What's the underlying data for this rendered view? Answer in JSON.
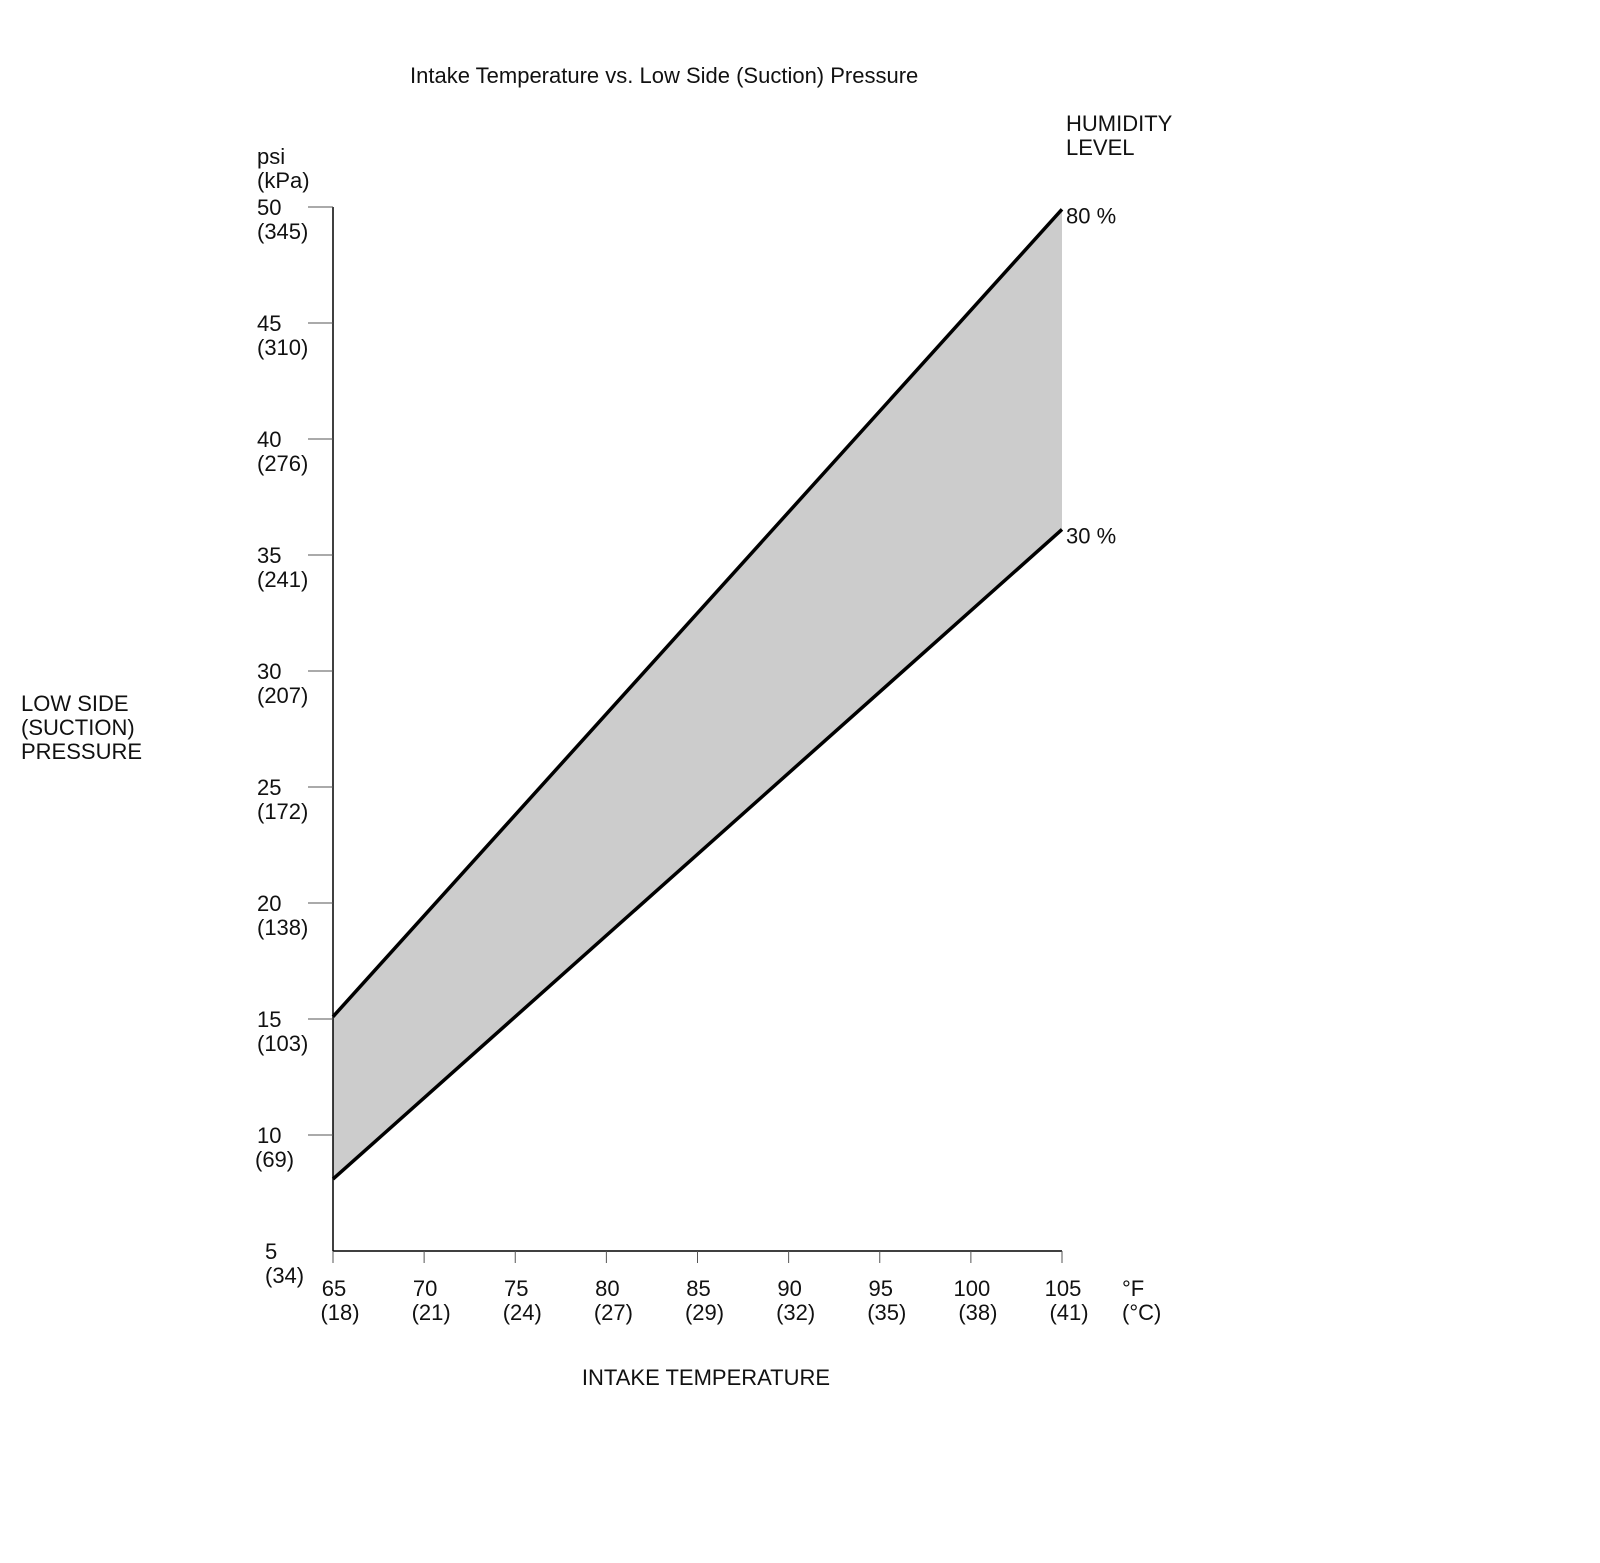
{
  "chart_data": {
    "type": "area",
    "title": "Intake Temperature vs. Low Side (Suction) Pressure",
    "xlabel": "INTAKE TEMPERATURE",
    "ylabel": [
      "LOW SIDE",
      "(SUCTION)",
      "PRESSURE"
    ],
    "y_units": [
      "psi",
      "(kPa)"
    ],
    "x_units": [
      "°F",
      "(°C)"
    ],
    "legend_title": [
      "HUMIDITY",
      "LEVEL"
    ],
    "xlim": [
      65,
      105
    ],
    "ylim": [
      5,
      50
    ],
    "x_ticks": [
      {
        "value": 65,
        "label": "65",
        "sub": "(18)"
      },
      {
        "value": 70,
        "label": "70",
        "sub": "(21)"
      },
      {
        "value": 75,
        "label": "75",
        "sub": "(24)"
      },
      {
        "value": 80,
        "label": "80",
        "sub": "(27)"
      },
      {
        "value": 85,
        "label": "85",
        "sub": "(29)"
      },
      {
        "value": 90,
        "label": "90",
        "sub": "(32)"
      },
      {
        "value": 95,
        "label": "95",
        "sub": "(35)"
      },
      {
        "value": 100,
        "label": "100",
        "sub": "(38)"
      },
      {
        "value": 105,
        "label": "105",
        "sub": "(41)"
      }
    ],
    "y_ticks": [
      {
        "value": 5,
        "label": "5",
        "sub": "(34)"
      },
      {
        "value": 10,
        "label": "10",
        "sub": "(69)"
      },
      {
        "value": 15,
        "label": "15",
        "sub": "(103)"
      },
      {
        "value": 20,
        "label": "20",
        "sub": "(138)"
      },
      {
        "value": 25,
        "label": "25",
        "sub": "(172)"
      },
      {
        "value": 30,
        "label": "30",
        "sub": "(207)"
      },
      {
        "value": 35,
        "label": "35",
        "sub": "(241)"
      },
      {
        "value": 40,
        "label": "40",
        "sub": "(276)"
      },
      {
        "value": 45,
        "label": "45",
        "sub": "(310)"
      },
      {
        "value": 50,
        "label": "50",
        "sub": "(345)"
      }
    ],
    "series": [
      {
        "name": "80 %",
        "x": [
          65,
          105
        ],
        "y": [
          15.1,
          49.9
        ]
      },
      {
        "name": "30 %",
        "x": [
          65,
          105
        ],
        "y": [
          8.1,
          36.1
        ]
      }
    ],
    "band_fill": "#cccccc",
    "line_color": "#000000",
    "grid": false,
    "legend": "right-end labels"
  }
}
